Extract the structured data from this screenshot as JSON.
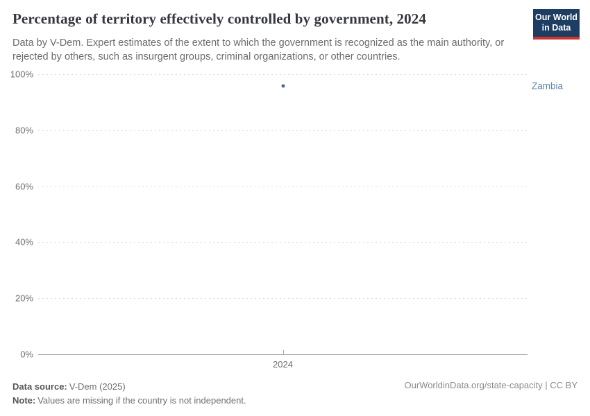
{
  "header": {
    "title": "Percentage of territory effectively controlled by government, 2024",
    "subtitle": "Data by V-Dem. Expert estimates of the extent to which the government is recognized as the main authority, or rejected by others, such as insurgent groups, criminal organizations, or other countries.",
    "logo": {
      "line1": "Our World",
      "line2": "in Data",
      "bg_color": "#1d3d63",
      "accent_color": "#d0342c"
    }
  },
  "chart_data": {
    "type": "scatter",
    "title": "Percentage of territory effectively controlled by government, 2024",
    "x": [
      2024
    ],
    "xticks": [
      "2024"
    ],
    "series": [
      {
        "name": "Zambia",
        "values": [
          95.9
        ],
        "color": "#4c6a9c",
        "label_color": "#6080ab"
      }
    ],
    "ylim": [
      0,
      100
    ],
    "yticks": [
      0,
      20,
      40,
      60,
      80,
      100
    ],
    "ytick_labels": [
      "0%",
      "20%",
      "40%",
      "60%",
      "80%",
      "100%"
    ],
    "ylabel": "",
    "xlabel": "",
    "grid": "horizontal-dashed",
    "legend_position": "right-of-point"
  },
  "footer": {
    "datasource_label": "Data source:",
    "datasource_value": "V-Dem (2025)",
    "note_label": "Note:",
    "note_value": "Values are missing if the country is not independent.",
    "link": "OurWorldinData.org/state-capacity | CC BY"
  }
}
